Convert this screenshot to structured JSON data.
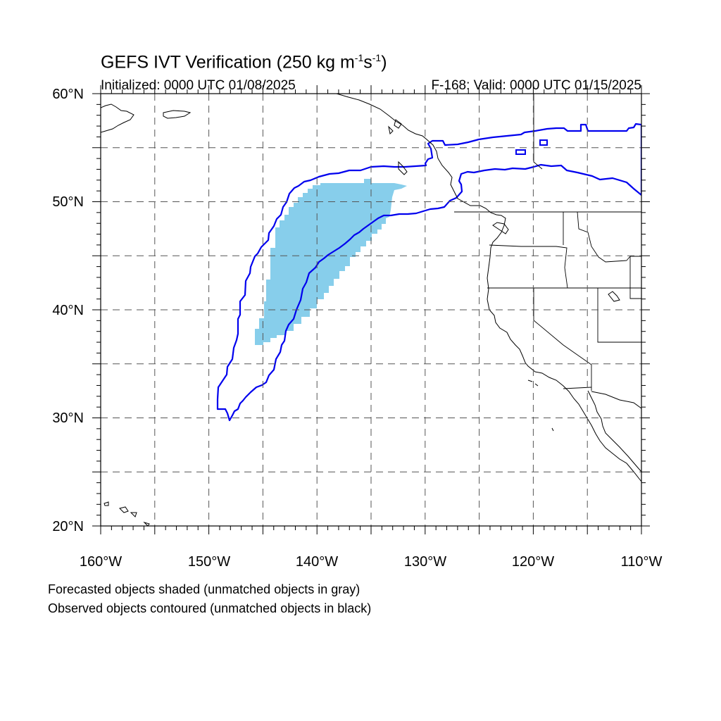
{
  "title": {
    "main": "GEFS IVT Verification (250 kg m",
    "sup1": "-1",
    "mid": "s",
    "sup2": "-1",
    "end": ")"
  },
  "init_label": "Initialized: 0000 UTC 01/08/2025",
  "valid_label": "F-168: Valid: 0000 UTC 01/15/2025",
  "lat_labels": [
    "60°N",
    "50°N",
    "40°N",
    "30°N",
    "20°N"
  ],
  "lon_labels": [
    "160°W",
    "150°W",
    "140°W",
    "130°W",
    "120°W",
    "110°W"
  ],
  "footnotes": [
    "Forecasted objects shaded (unmatched objects in gray)",
    "Observed objects contoured (unmatched objects in black)"
  ],
  "colors": {
    "forecast_fill": "#87ceeb",
    "observed_contour": "#0000ee",
    "coast": "#000000",
    "grid": "#555555"
  },
  "map_extent": {
    "lon": [
      -160,
      -110
    ],
    "lat": [
      20,
      60
    ]
  }
}
